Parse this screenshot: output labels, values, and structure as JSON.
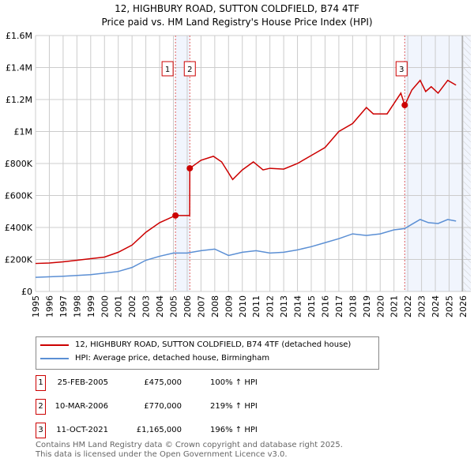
{
  "chart_data": {
    "type": "line",
    "title": "12, HIGHBURY ROAD, SUTTON COLDFIELD, B74 4TF",
    "subtitle": "Price paid vs. HM Land Registry's House Price Index (HPI)",
    "xlim": [
      1995,
      2026.6
    ],
    "ylim": [
      0,
      1600000
    ],
    "grid": true,
    "x_ticks": [
      "1995",
      "1996",
      "1997",
      "1998",
      "1999",
      "2000",
      "2001",
      "2002",
      "2003",
      "2004",
      "2005",
      "2006",
      "2007",
      "2008",
      "2009",
      "2010",
      "2011",
      "2012",
      "2013",
      "2014",
      "2015",
      "2016",
      "2017",
      "2018",
      "2019",
      "2020",
      "2021",
      "2022",
      "2023",
      "2024",
      "2025",
      "2026"
    ],
    "y_ticks": [
      {
        "v": 0,
        "label": "£0"
      },
      {
        "v": 200000,
        "label": "£200K"
      },
      {
        "v": 400000,
        "label": "£400K"
      },
      {
        "v": 600000,
        "label": "£600K"
      },
      {
        "v": 800000,
        "label": "£800K"
      },
      {
        "v": 1000000,
        "label": "£1M"
      },
      {
        "v": 1200000,
        "label": "£1.2M"
      },
      {
        "v": 1400000,
        "label": "£1.4M"
      },
      {
        "v": 1600000,
        "label": "£1.6M"
      }
    ],
    "shaded_ranges": [
      [
        2005.15,
        2006.19
      ],
      [
        2021.78,
        2026.6
      ]
    ],
    "forecast_from": 2025.95,
    "series": [
      {
        "name": "12, HIGHBURY ROAD, SUTTON COLDFIELD, B74 4TF (detached house)",
        "color": "#cc0000",
        "x": [
          1995,
          1996,
          1997,
          1998,
          1999,
          2000,
          2001,
          2002,
          2003,
          2004,
          2005.15,
          2006.18,
          2006.19,
          2007,
          2007.9,
          2008.5,
          2009.3,
          2010,
          2010.8,
          2011.5,
          2012,
          2013,
          2014,
          2015,
          2016,
          2017,
          2018,
          2019,
          2019.5,
          2020.5,
          2021.5,
          2021.78,
          2022.3,
          2022.9,
          2023.3,
          2023.7,
          2024.2,
          2024.9,
          2025.5
        ],
        "y": [
          175000,
          178000,
          185000,
          195000,
          205000,
          215000,
          245000,
          290000,
          370000,
          430000,
          475000,
          475000,
          770000,
          820000,
          845000,
          810000,
          700000,
          760000,
          810000,
          760000,
          770000,
          765000,
          800000,
          850000,
          900000,
          1000000,
          1050000,
          1150000,
          1110000,
          1110000,
          1240000,
          1165000,
          1260000,
          1320000,
          1250000,
          1280000,
          1240000,
          1320000,
          1290000
        ]
      },
      {
        "name": "HPI: Average price, detached house, Birmingham",
        "color": "#5b8fd4",
        "x": [
          1995,
          1997,
          1999,
          2001,
          2002,
          2003,
          2004,
          2005,
          2006,
          2007,
          2008,
          2009,
          2010,
          2011,
          2012,
          2013,
          2014,
          2015,
          2016,
          2017,
          2018,
          2019,
          2020,
          2021,
          2021.78,
          2022.3,
          2022.9,
          2023.5,
          2024.2,
          2024.9,
          2025.5
        ],
        "y": [
          88000,
          95000,
          105000,
          125000,
          150000,
          195000,
          220000,
          240000,
          240000,
          255000,
          265000,
          225000,
          245000,
          255000,
          240000,
          245000,
          260000,
          280000,
          305000,
          330000,
          360000,
          350000,
          360000,
          385000,
          393000,
          420000,
          450000,
          430000,
          425000,
          450000,
          440000
        ]
      }
    ],
    "sales": [
      {
        "n": "1",
        "x": 2005.15,
        "y": 475000,
        "date": "25-FEB-2005",
        "price": "£475,000",
        "hpi": "100% ↑ HPI"
      },
      {
        "n": "2",
        "x": 2006.19,
        "y": 770000,
        "date": "10-MAR-2006",
        "price": "£770,000",
        "hpi": "219% ↑ HPI"
      },
      {
        "n": "3",
        "x": 2021.78,
        "y": 1165000,
        "date": "11-OCT-2021",
        "price": "£1,165,000",
        "hpi": "196% ↑ HPI"
      }
    ]
  },
  "footer": {
    "line1": "Contains HM Land Registry data © Crown copyright and database right 2025.",
    "line2": "This data is licensed under the Open Government Licence v3.0."
  }
}
